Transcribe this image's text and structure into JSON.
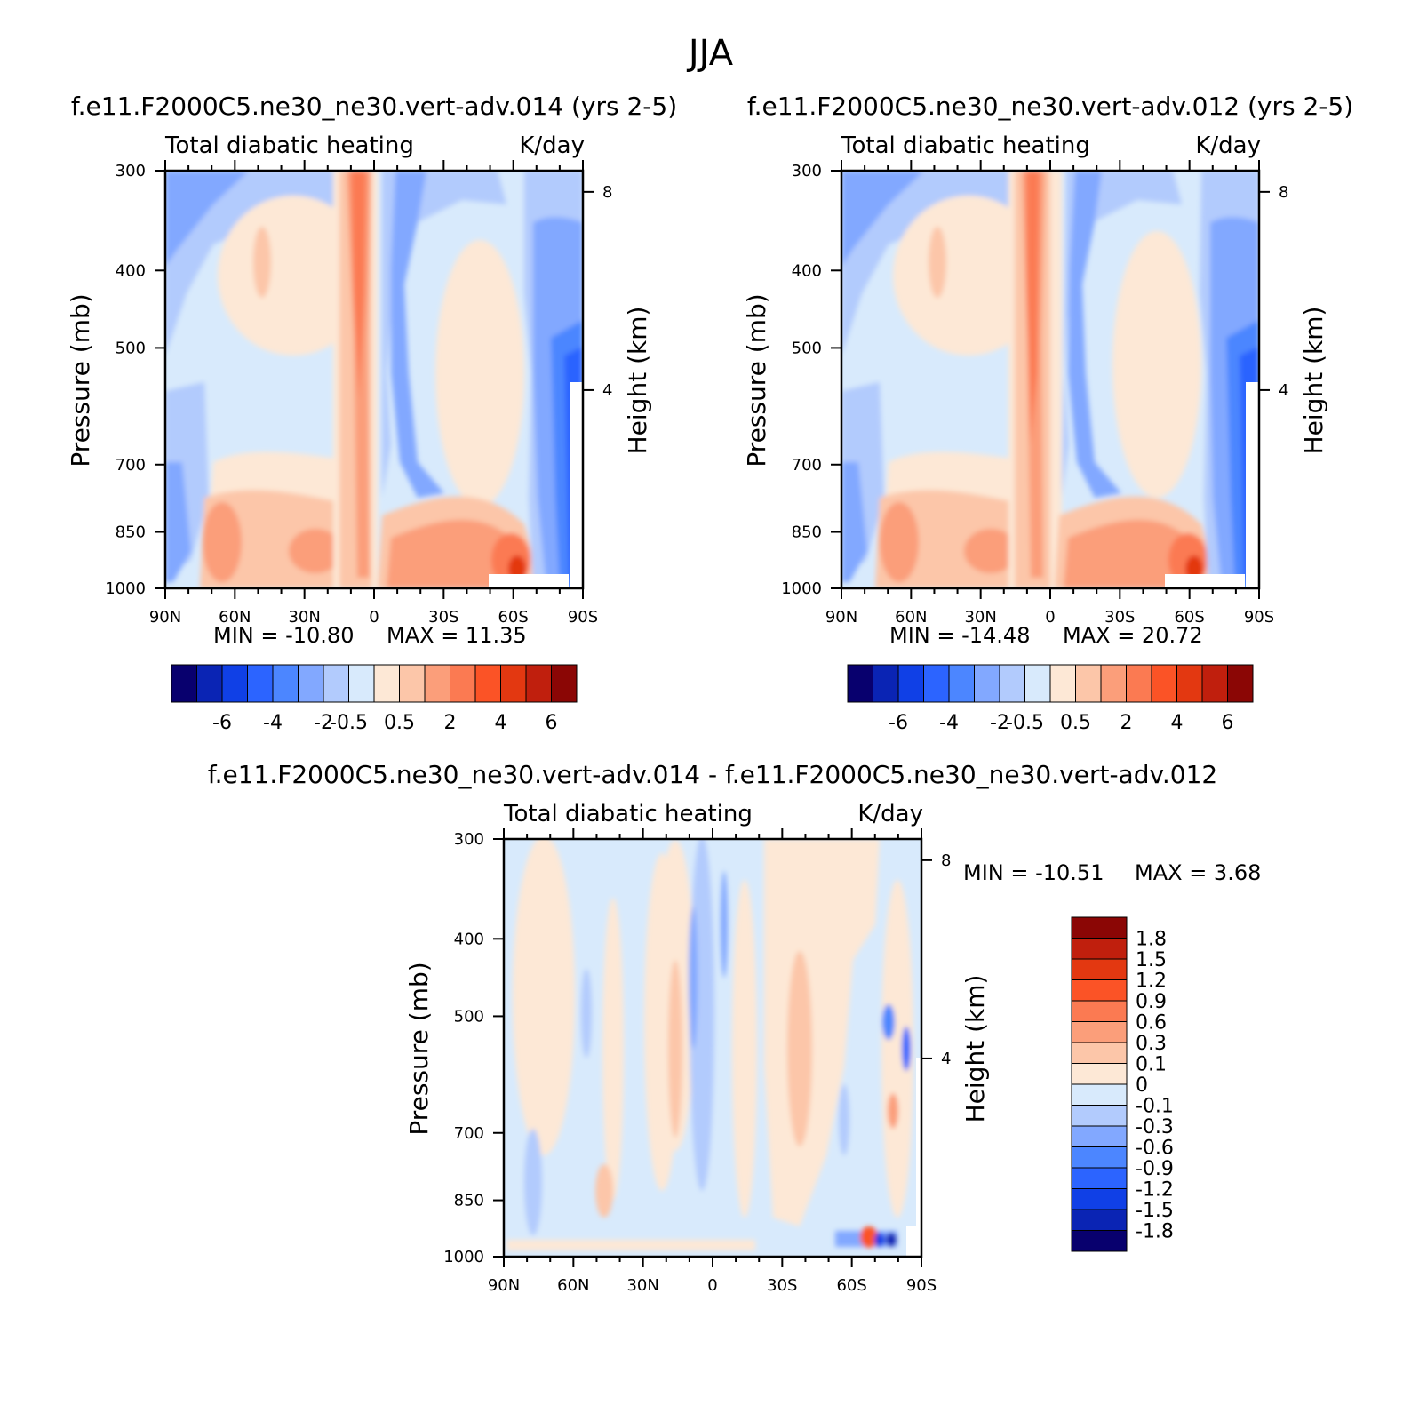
{
  "figure_title": "JJA",
  "chart_data": [
    {
      "type": "heatmap",
      "case": "f.e11.F2000C5.ne30_ne30.vert-adv.014 (yrs 2-5)",
      "variable": "Total diabatic heating",
      "units": "K/day",
      "xlabel": "",
      "ylabel": "Pressure (mb)",
      "y2label": "Height (km)",
      "x_ticks": [
        "90N",
        "60N",
        "30N",
        "0",
        "30S",
        "60S",
        "90S"
      ],
      "y_ticks": [
        "300",
        "400",
        "500",
        "700",
        "850",
        "1000"
      ],
      "y2_ticks": [
        "8",
        "4"
      ],
      "min": -10.8,
      "max": 11.35,
      "min_label": "MIN = -10.80",
      "max_label": "MAX = 11.35",
      "colorbar": {
        "labels": [
          "-6",
          "-4",
          "-2",
          "-0.5",
          "0.5",
          "2",
          "4",
          "6"
        ],
        "colors": [
          "#08006e",
          "#0a24b4",
          "#1040e6",
          "#2c64ff",
          "#4c86ff",
          "#82a8ff",
          "#b2cbfd",
          "#d8eafc",
          "#fde8d6",
          "#fcc6a9",
          "#fb9e7a",
          "#fb7a52",
          "#fb5326",
          "#e33811",
          "#c01f0d",
          "#8b0605"
        ]
      }
    },
    {
      "type": "heatmap",
      "case": "f.e11.F2000C5.ne30_ne30.vert-adv.012 (yrs 2-5)",
      "variable": "Total diabatic heating",
      "units": "K/day",
      "xlabel": "",
      "ylabel": "Pressure (mb)",
      "y2label": "Height (km)",
      "x_ticks": [
        "90N",
        "60N",
        "30N",
        "0",
        "30S",
        "60S",
        "90S"
      ],
      "y_ticks": [
        "300",
        "400",
        "500",
        "700",
        "850",
        "1000"
      ],
      "y2_ticks": [
        "8",
        "4"
      ],
      "min": -14.48,
      "max": 20.72,
      "min_label": "MIN = -14.48",
      "max_label": "MAX = 20.72",
      "colorbar": {
        "labels": [
          "-6",
          "-4",
          "-2",
          "-0.5",
          "0.5",
          "2",
          "4",
          "6"
        ],
        "colors": [
          "#08006e",
          "#0a24b4",
          "#1040e6",
          "#2c64ff",
          "#4c86ff",
          "#82a8ff",
          "#b2cbfd",
          "#d8eafc",
          "#fde8d6",
          "#fcc6a9",
          "#fb9e7a",
          "#fb7a52",
          "#fb5326",
          "#e33811",
          "#c01f0d",
          "#8b0605"
        ]
      }
    },
    {
      "type": "heatmap",
      "case": "f.e11.F2000C5.ne30_ne30.vert-adv.014 - f.e11.F2000C5.ne30_ne30.vert-adv.012",
      "variable": "Total diabatic heating",
      "units": "K/day",
      "xlabel": "",
      "ylabel": "Pressure (mb)",
      "y2label": "Height (km)",
      "x_ticks": [
        "90N",
        "60N",
        "30N",
        "0",
        "30S",
        "60S",
        "90S"
      ],
      "y_ticks": [
        "300",
        "400",
        "500",
        "700",
        "850",
        "1000"
      ],
      "y2_ticks": [
        "8",
        "4"
      ],
      "min": -10.51,
      "max": 3.68,
      "min_label": "MIN = -10.51",
      "max_label": "MAX = 3.68",
      "colorbar": {
        "labels": [
          "1.8",
          "1.5",
          "1.2",
          "0.9",
          "0.6",
          "0.3",
          "0.1",
          "0",
          "-0.1",
          "-0.3",
          "-0.6",
          "-0.9",
          "-1.2",
          "-1.5",
          "-1.8"
        ],
        "colors": [
          "#8b0605",
          "#c01f0d",
          "#e33811",
          "#fb5326",
          "#fb7a52",
          "#fb9e7a",
          "#fcc6a9",
          "#fde8d6",
          "#d8eafc",
          "#b2cbfd",
          "#82a8ff",
          "#4c86ff",
          "#2c64ff",
          "#1040e6",
          "#0a24b4",
          "#08006e"
        ]
      }
    }
  ]
}
